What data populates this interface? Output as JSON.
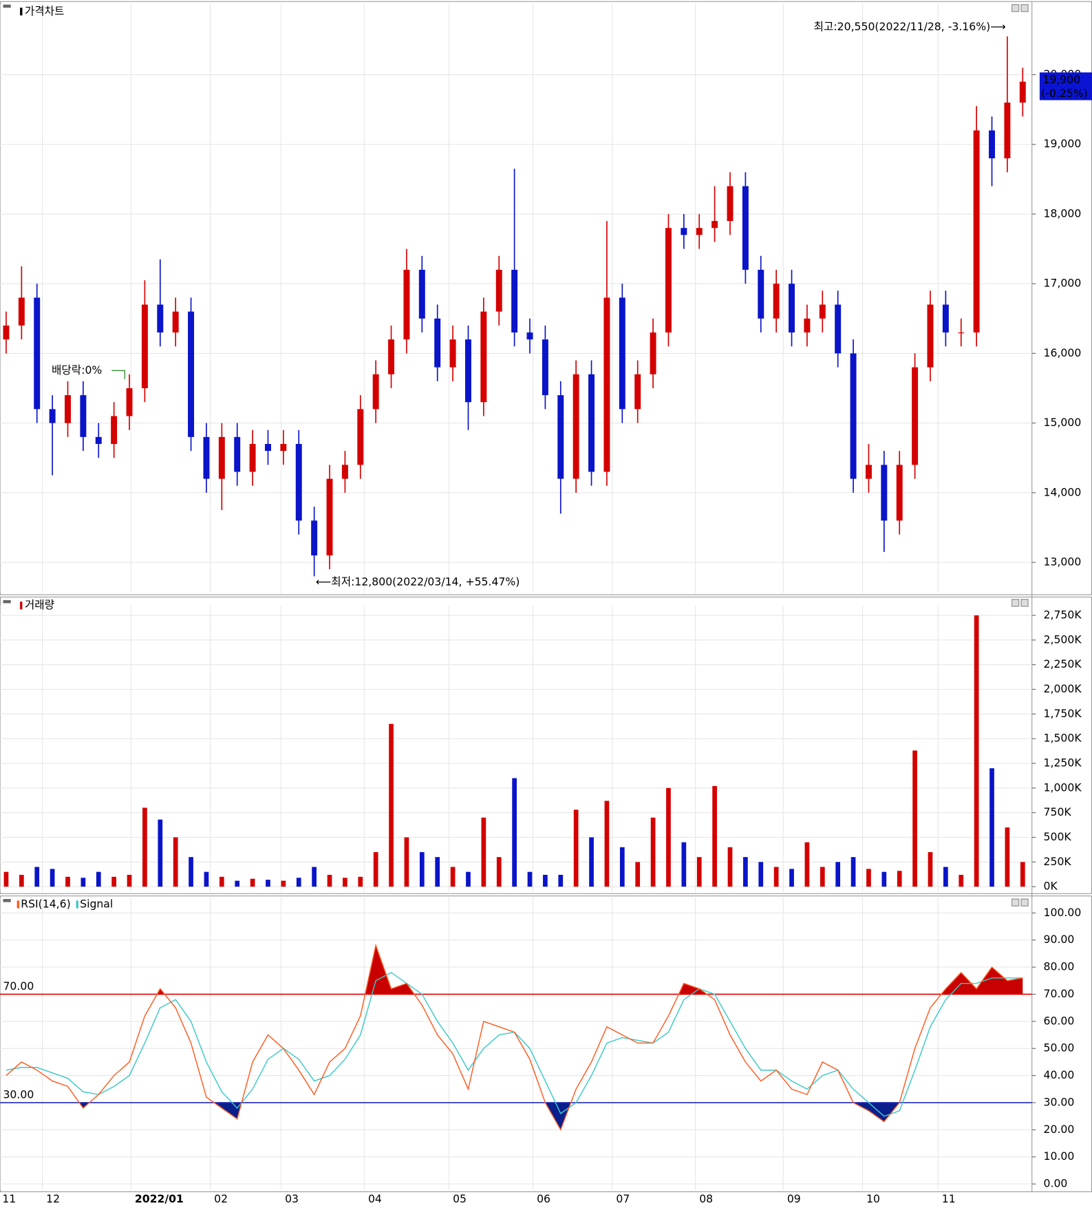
{
  "chart_data": [
    {
      "type": "candlestick",
      "title": "가격차트",
      "categories": [
        null,
        null,
        null,
        null,
        null,
        null,
        null,
        null,
        null,
        null,
        null,
        null,
        null,
        null,
        null,
        null,
        null,
        null,
        null,
        null,
        null,
        null,
        null,
        null,
        null,
        null,
        null,
        null,
        null,
        null,
        null,
        null,
        null,
        null,
        null,
        null,
        null,
        null,
        null,
        null,
        null,
        null,
        null,
        null,
        null,
        null,
        null,
        null,
        null,
        null,
        null,
        null,
        null,
        null,
        null,
        null,
        null,
        null,
        null,
        null,
        null,
        null,
        null,
        null,
        null,
        null,
        null
      ],
      "open": [
        16200,
        16400,
        16800,
        15200,
        15000,
        15400,
        14800,
        14700,
        15100,
        15500,
        16700,
        16300,
        16600,
        14800,
        14200,
        14800,
        14300,
        14700,
        14600,
        14700,
        13600,
        13100,
        14200,
        14400,
        15200,
        15700,
        16200,
        17200,
        16500,
        15800,
        16200,
        15300,
        16600,
        17200,
        16300,
        16200,
        15400,
        14200,
        15700,
        14300,
        16800,
        15200,
        15700,
        16300,
        17800,
        17700,
        17800,
        17900,
        18400,
        17200,
        16500,
        17000,
        16300,
        16500,
        16700,
        16000,
        14200,
        14400,
        13600,
        14400,
        15800,
        16700,
        16300,
        16300,
        19200,
        18800,
        19600
      ],
      "high": [
        16600,
        17250,
        17000,
        15400,
        15600,
        15600,
        15000,
        15300,
        15700,
        17050,
        17350,
        16800,
        16800,
        15000,
        15000,
        15000,
        14900,
        14900,
        14900,
        14900,
        13800,
        14400,
        14600,
        15400,
        15900,
        16400,
        17500,
        17400,
        16700,
        16400,
        16400,
        16800,
        17400,
        18650,
        16500,
        16400,
        15600,
        15900,
        15900,
        17900,
        17000,
        15900,
        16500,
        18000,
        18000,
        18000,
        18400,
        18600,
        18600,
        17400,
        17200,
        17200,
        16700,
        16900,
        16900,
        16200,
        14700,
        14600,
        14600,
        16000,
        16900,
        16900,
        16500,
        19550,
        19400,
        20550,
        20100
      ],
      "low": [
        16000,
        16200,
        15000,
        14250,
        14800,
        14600,
        14500,
        14500,
        14900,
        15300,
        16100,
        16100,
        14600,
        14000,
        13750,
        14100,
        14100,
        14400,
        14400,
        13400,
        12800,
        12900,
        14000,
        14200,
        15000,
        15500,
        16000,
        16300,
        15600,
        15600,
        14900,
        15100,
        16400,
        16100,
        16000,
        15200,
        13700,
        14000,
        14100,
        14100,
        15000,
        15000,
        15500,
        16100,
        17500,
        17500,
        17600,
        17700,
        17000,
        16300,
        16300,
        16100,
        16100,
        16300,
        15800,
        14000,
        14000,
        13150,
        13400,
        14200,
        15600,
        16100,
        16100,
        16100,
        18400,
        18600,
        19400
      ],
      "close": [
        16400,
        16800,
        15200,
        15000,
        15400,
        14800,
        14700,
        15100,
        15500,
        16700,
        16300,
        16600,
        14800,
        14200,
        14800,
        14300,
        14700,
        14600,
        14700,
        13600,
        13100,
        14200,
        14400,
        15200,
        15700,
        16200,
        17200,
        16500,
        15800,
        16200,
        15300,
        16600,
        17200,
        16300,
        16200,
        15400,
        14200,
        15700,
        14300,
        16800,
        15200,
        15700,
        16300,
        17800,
        17700,
        17800,
        17900,
        18400,
        17200,
        16500,
        17000,
        16300,
        16500,
        16700,
        16000,
        14200,
        14400,
        13600,
        14400,
        15800,
        16700,
        16300,
        16300,
        19200,
        18800,
        19600,
        19900
      ],
      "up_color": "#d40000",
      "down_color": "#0a14c8",
      "ylim": [
        12558,
        21017
      ],
      "yticks": [
        {
          "value": 13000,
          "label": "13,000"
        },
        {
          "value": 14000,
          "label": "14,000"
        },
        {
          "value": 15000,
          "label": "15,000"
        },
        {
          "value": 16000,
          "label": "16,000"
        },
        {
          "value": 17000,
          "label": "17,000"
        },
        {
          "value": 18000,
          "label": "18,000"
        },
        {
          "value": 19000,
          "label": "19,000"
        },
        {
          "value": 20000,
          "label": "20,000"
        }
      ],
      "high_label": "최고:20,550(2022/11/28, -3.16%)⟶",
      "low_label": "⟵최저:12,800(2022/03/14, +55.47%)",
      "dividend_label": "배당락:0%",
      "last_price": 19900,
      "last_price_label": "19,900",
      "last_change_label": "(-0.25%)",
      "grid": true
    },
    {
      "type": "bar",
      "title": "거래량",
      "values": [
        150,
        120,
        200,
        180,
        100,
        90,
        150,
        100,
        120,
        800,
        680,
        500,
        300,
        150,
        100,
        60,
        80,
        70,
        60,
        90,
        200,
        120,
        90,
        100,
        350,
        1650,
        500,
        350,
        300,
        200,
        150,
        700,
        300,
        1100,
        150,
        120,
        120,
        780,
        500,
        870,
        400,
        250,
        700,
        1000,
        450,
        300,
        1020,
        400,
        300,
        250,
        200,
        180,
        450,
        200,
        250,
        300,
        180,
        150,
        160,
        1380,
        350,
        200,
        120,
        2750,
        1200,
        600,
        250
      ],
      "ylim": [
        -55,
        2850
      ],
      "yticks": [
        {
          "value": 0,
          "label": "0K"
        },
        {
          "value": 250,
          "label": "250K"
        },
        {
          "value": 500,
          "label": "500K"
        },
        {
          "value": 750,
          "label": "750K"
        },
        {
          "value": 1000,
          "label": "1,000K"
        },
        {
          "value": 1250,
          "label": "1,250K"
        },
        {
          "value": 1500,
          "label": "1,500K"
        },
        {
          "value": 1750,
          "label": "1,750K"
        },
        {
          "value": 2000,
          "label": "2,000K"
        },
        {
          "value": 2250,
          "label": "2,250K"
        },
        {
          "value": 2500,
          "label": "2,500K"
        },
        {
          "value": 2750,
          "label": "2,750K"
        }
      ],
      "grid": true
    },
    {
      "type": "line",
      "series": [
        {
          "name": "RSI(14,6)",
          "color": "#ff5a1e",
          "values": [
            40,
            45,
            42,
            38,
            36,
            28,
            33,
            40,
            45,
            62,
            72,
            65,
            52,
            32,
            28,
            24,
            45,
            55,
            50,
            42,
            33,
            45,
            50,
            62,
            88,
            72,
            74,
            66,
            55,
            48,
            35,
            60,
            58,
            56,
            46,
            30,
            20,
            35,
            45,
            58,
            55,
            52,
            52,
            62,
            74,
            72,
            68,
            55,
            45,
            38,
            42,
            35,
            33,
            45,
            42,
            30,
            27,
            23,
            30,
            50,
            65,
            72,
            78,
            72,
            80,
            75,
            76
          ]
        },
        {
          "name": "Signal",
          "color": "#3cc8c8",
          "values": [
            42,
            43,
            43,
            41,
            39,
            34,
            33,
            36,
            40,
            52,
            65,
            68,
            60,
            45,
            34,
            28,
            35,
            46,
            50,
            46,
            38,
            40,
            46,
            55,
            75,
            78,
            74,
            70,
            60,
            52,
            42,
            50,
            55,
            56,
            50,
            38,
            26,
            30,
            40,
            52,
            54,
            53,
            52,
            56,
            68,
            72,
            70,
            60,
            50,
            42,
            42,
            38,
            35,
            40,
            42,
            35,
            30,
            25,
            27,
            42,
            58,
            68,
            74,
            74,
            76,
            76,
            76
          ]
        }
      ],
      "levels": [
        {
          "value": 70,
          "label": "70.00",
          "color": "#e00000",
          "fill": "#c80000"
        },
        {
          "value": 30,
          "label": "30.00",
          "color": "#1e28b4",
          "fill": "#0a1e8c"
        }
      ],
      "ylim": [
        -2.3,
        105.7
      ],
      "yticks": [
        {
          "value": 0,
          "label": "0.00"
        },
        {
          "value": 10,
          "label": "10.00"
        },
        {
          "value": 20,
          "label": "20.00"
        },
        {
          "value": 30,
          "label": "30.00"
        },
        {
          "value": 40,
          "label": "40.00"
        },
        {
          "value": 50,
          "label": "50.00"
        },
        {
          "value": 60,
          "label": "60.00"
        },
        {
          "value": 70,
          "label": "70.00"
        },
        {
          "value": 80,
          "label": "80.00"
        },
        {
          "value": 90,
          "label": "90.00"
        },
        {
          "value": 100,
          "label": "100.00"
        }
      ],
      "xlim": [
        -0.4,
        66.6
      ],
      "xticks": [
        {
          "value": -0.4,
          "label": "11"
        },
        {
          "value": 2.35,
          "label": "12"
        },
        {
          "value": 8.1,
          "label": "2022/01"
        },
        {
          "value": 13.25,
          "label": "02"
        },
        {
          "value": 17.85,
          "label": "03"
        },
        {
          "value": 23.25,
          "label": "04"
        },
        {
          "value": 28.75,
          "label": "05"
        },
        {
          "value": 34.2,
          "label": "06"
        },
        {
          "value": 39.35,
          "label": "07"
        },
        {
          "value": 44.75,
          "label": "08"
        },
        {
          "value": 50.45,
          "label": "09"
        },
        {
          "value": 55.6,
          "label": "10"
        },
        {
          "value": 60.5,
          "label": "11"
        }
      ],
      "grid": true
    }
  ]
}
